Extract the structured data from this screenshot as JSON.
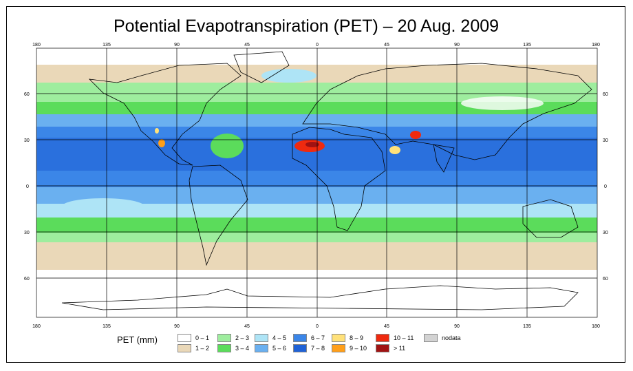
{
  "title": "Potential Evapotranspiration (PET) – 20 Aug. 2009",
  "map": {
    "longitude_ticks": [
      "180",
      "135",
      "90",
      "45",
      "0",
      "45",
      "90",
      "135",
      "180"
    ],
    "latitude_ticks": [
      "60",
      "30",
      "0",
      "30",
      "60"
    ],
    "colors": {
      "land_outline": "#000000",
      "grid": "#000000",
      "zero_pet": "#ffffff",
      "ocean_low": "#ead8b8",
      "ocean_mid": "#7ee07e",
      "ocean_high": "#5aa8ee",
      "ocean_peak": "#2d7ae6"
    }
  },
  "legend": {
    "title": "PET (mm)",
    "items": [
      {
        "label": "0 – 1",
        "color": "#ffffff"
      },
      {
        "label": "1 – 2",
        "color": "#ead8b8"
      },
      {
        "label": "2 – 3",
        "color": "#9eed9e"
      },
      {
        "label": "3 – 4",
        "color": "#5bdc5b"
      },
      {
        "label": "4 – 5",
        "color": "#aee4f6"
      },
      {
        "label": "5 – 6",
        "color": "#6ab0f0"
      },
      {
        "label": "6 – 7",
        "color": "#3b86e8"
      },
      {
        "label": "7 – 8",
        "color": "#1f62d6"
      },
      {
        "label": "8 – 9",
        "color": "#ffe17a"
      },
      {
        "label": "9 – 10",
        "color": "#ff9f1a"
      },
      {
        "label": "10 – 11",
        "color": "#ef2a0f"
      },
      {
        "label": "> 11",
        "color": "#a01212"
      },
      {
        "label": "nodata",
        "color": "#d3d3d3"
      }
    ]
  }
}
